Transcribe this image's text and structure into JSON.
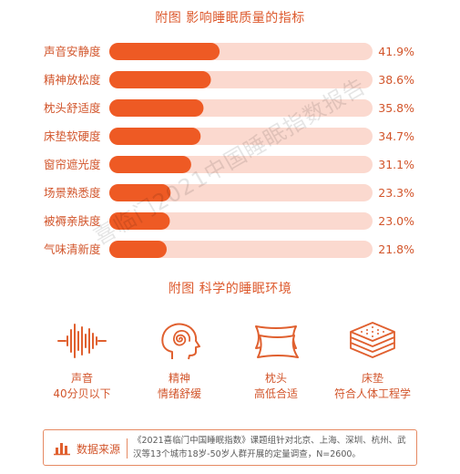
{
  "chart_data": {
    "type": "bar",
    "orientation": "horizontal",
    "title": "附图 影响睡眠质量的指标",
    "categories": [
      "声音安静度",
      "精神放松度",
      "枕头舒适度",
      "床垫软硬度",
      "窗帘遮光度",
      "场景熟悉度",
      "被褥亲肤度",
      "气味清新度"
    ],
    "values": [
      41.9,
      38.6,
      35.8,
      34.7,
      31.1,
      23.3,
      23.0,
      21.8
    ],
    "value_labels": [
      "41.9%",
      "38.6%",
      "35.8%",
      "34.7%",
      "31.1%",
      "23.3%",
      "23.0%",
      "21.8%"
    ],
    "xlim": [
      0,
      100
    ],
    "grid": false,
    "colors": {
      "bar": "#ee5a24",
      "track": "#fbd9cf",
      "text": "#d2552b"
    }
  },
  "watermark": "喜临门2021中国睡眠指数报告",
  "env": {
    "title": "附图 科学的睡眠环境",
    "items": [
      {
        "icon": "sound-wave-icon",
        "name": "声音",
        "desc": "40分贝以下"
      },
      {
        "icon": "head-spiral-icon",
        "name": "精神",
        "desc": "情绪舒缓"
      },
      {
        "icon": "pillow-icon",
        "name": "枕头",
        "desc": "高低合适"
      },
      {
        "icon": "mattress-icon",
        "name": "床垫",
        "desc": "符合人体工程学"
      }
    ]
  },
  "source": {
    "icon": "bar-chart-icon",
    "label": "数据来源",
    "text": "《2021喜临门中国睡眠指数》课题组针对北京、上海、深圳、杭州、武汉等13个城市18岁-50岁人群开展的定量调查，N=2600。"
  }
}
